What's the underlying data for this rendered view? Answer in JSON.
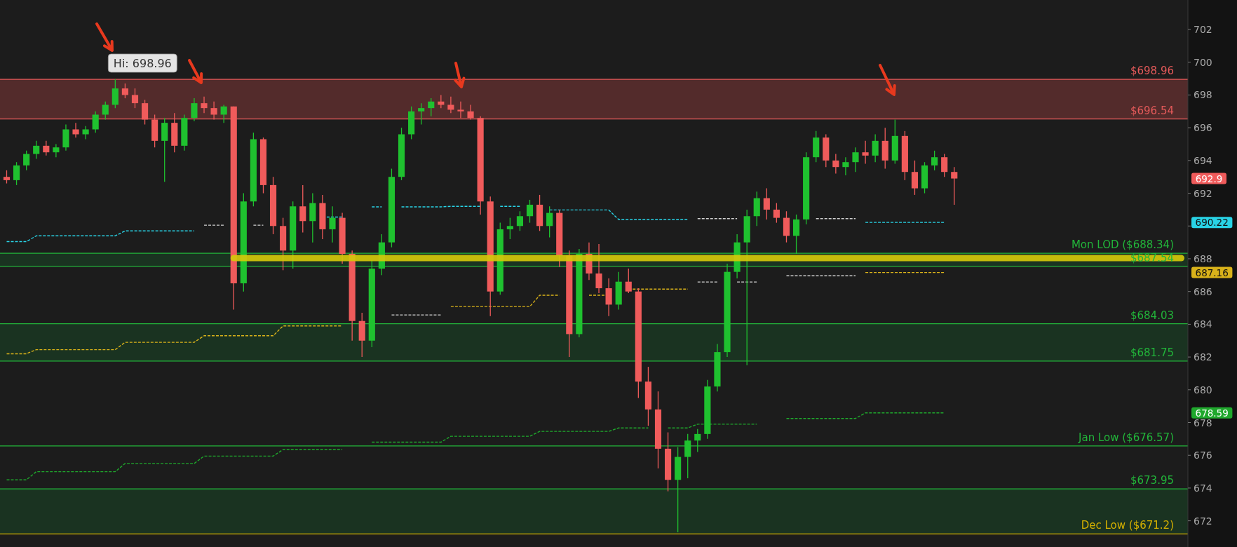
{
  "chart_data": {
    "type": "candlestick",
    "categories": [
      null,
      null,
      null,
      null,
      null,
      null,
      null,
      null,
      null,
      null,
      null,
      null,
      null,
      null,
      null,
      null,
      null,
      null,
      null,
      null,
      null,
      null,
      null,
      null,
      null,
      null,
      null,
      null,
      null,
      null,
      null,
      null,
      null,
      null,
      null,
      null,
      null,
      null,
      null,
      null,
      null,
      null,
      null,
      null,
      null,
      null,
      null,
      null,
      null,
      null,
      null,
      null,
      null,
      null,
      null,
      null,
      null,
      null,
      null,
      null,
      null,
      null,
      null,
      null,
      null,
      null,
      null,
      null,
      null,
      null,
      null,
      null,
      null,
      null,
      null,
      null,
      null,
      null,
      null,
      null,
      null,
      null,
      null,
      null,
      null,
      null,
      null,
      null,
      null,
      null,
      null,
      null,
      null,
      null,
      null,
      null,
      null,
      null,
      null,
      null,
      null,
      null,
      null,
      null,
      null,
      null,
      null,
      null,
      null,
      null,
      null,
      null,
      null,
      null,
      null,
      null,
      null,
      null,
      null,
      null
    ],
    "ohlc": [
      [
        693.0,
        693.4,
        692.6,
        692.8
      ],
      [
        692.8,
        693.9,
        692.5,
        693.7
      ],
      [
        693.7,
        694.6,
        693.4,
        694.4
      ],
      [
        694.4,
        695.2,
        694.1,
        694.9
      ],
      [
        694.9,
        695.2,
        694.3,
        694.5
      ],
      [
        694.5,
        695.0,
        694.2,
        694.8
      ],
      [
        694.8,
        696.2,
        694.6,
        695.9
      ],
      [
        695.9,
        696.3,
        695.4,
        695.6
      ],
      [
        695.6,
        696.1,
        695.3,
        695.9
      ],
      [
        695.9,
        697.0,
        695.7,
        696.8
      ],
      [
        696.8,
        697.6,
        696.5,
        697.4
      ],
      [
        697.4,
        698.96,
        697.2,
        698.4
      ],
      [
        698.4,
        698.7,
        697.8,
        698.0
      ],
      [
        698.0,
        698.4,
        697.2,
        697.5
      ],
      [
        697.5,
        697.7,
        696.2,
        696.5
      ],
      [
        696.5,
        696.8,
        694.8,
        695.2
      ],
      [
        695.2,
        696.6,
        692.7,
        696.3
      ],
      [
        696.3,
        696.9,
        694.5,
        694.9
      ],
      [
        694.9,
        696.8,
        694.6,
        696.6
      ],
      [
        696.6,
        697.8,
        696.4,
        697.5
      ],
      [
        697.5,
        697.9,
        696.9,
        697.2
      ],
      [
        697.2,
        697.6,
        696.5,
        696.8
      ],
      [
        696.8,
        697.4,
        696.3,
        697.3
      ],
      [
        697.3,
        697.3,
        684.9,
        686.5
      ],
      [
        686.5,
        692.0,
        686.0,
        691.5
      ],
      [
        691.5,
        695.7,
        691.2,
        695.3
      ],
      [
        695.3,
        695.4,
        692.0,
        692.5
      ],
      [
        692.5,
        693.0,
        689.5,
        690.0
      ],
      [
        690.0,
        690.5,
        687.3,
        688.5
      ],
      [
        688.5,
        691.5,
        687.4,
        691.2
      ],
      [
        691.2,
        692.5,
        689.6,
        690.3
      ],
      [
        690.3,
        692.0,
        689.0,
        691.4
      ],
      [
        691.4,
        691.9,
        689.2,
        689.8
      ],
      [
        689.8,
        691.2,
        689.0,
        690.5
      ],
      [
        690.5,
        690.8,
        687.7,
        688.3
      ],
      [
        688.3,
        688.5,
        683.0,
        684.2
      ],
      [
        684.2,
        684.7,
        682.0,
        683.0
      ],
      [
        683.0,
        687.9,
        682.6,
        687.4
      ],
      [
        687.4,
        689.5,
        687.0,
        689.0
      ],
      [
        689.0,
        693.5,
        688.7,
        693.0
      ],
      [
        693.0,
        696.0,
        692.8,
        695.6
      ],
      [
        695.6,
        697.3,
        695.3,
        697.0
      ],
      [
        697.0,
        697.5,
        696.2,
        697.2
      ],
      [
        697.2,
        697.8,
        696.7,
        697.6
      ],
      [
        697.6,
        698.0,
        697.2,
        697.4
      ],
      [
        697.4,
        697.9,
        696.9,
        697.1
      ],
      [
        697.1,
        697.6,
        696.6,
        697.0
      ],
      [
        697.0,
        697.4,
        696.5,
        696.6
      ],
      [
        696.6,
        696.7,
        690.7,
        691.5
      ],
      [
        691.5,
        691.8,
        684.5,
        686.0
      ],
      [
        686.0,
        690.2,
        685.8,
        689.8
      ],
      [
        689.8,
        690.5,
        689.2,
        690.0
      ],
      [
        690.0,
        690.9,
        689.7,
        690.6
      ],
      [
        690.6,
        691.6,
        690.2,
        691.3
      ],
      [
        691.3,
        691.9,
        689.7,
        690.0
      ],
      [
        690.0,
        691.2,
        689.3,
        690.8
      ],
      [
        690.8,
        691.0,
        687.5,
        688.2
      ],
      [
        688.2,
        688.5,
        682.0,
        683.4
      ],
      [
        683.4,
        688.6,
        683.2,
        688.3
      ],
      [
        688.3,
        689.0,
        686.7,
        687.1
      ],
      [
        687.1,
        688.9,
        685.9,
        686.2
      ],
      [
        686.2,
        686.8,
        684.5,
        685.2
      ],
      [
        685.2,
        687.2,
        684.9,
        686.6
      ],
      [
        686.6,
        687.4,
        685.9,
        686.0
      ],
      [
        686.0,
        686.2,
        679.5,
        680.5
      ],
      [
        680.5,
        681.4,
        677.8,
        678.8
      ],
      [
        678.8,
        679.9,
        675.2,
        676.4
      ],
      [
        676.4,
        677.4,
        673.8,
        674.5
      ],
      [
        674.5,
        676.5,
        671.3,
        675.9
      ],
      [
        675.9,
        677.3,
        674.6,
        676.9
      ],
      [
        676.9,
        677.6,
        676.2,
        677.3
      ],
      [
        677.3,
        680.6,
        677.0,
        680.2
      ],
      [
        680.2,
        682.8,
        679.9,
        682.3
      ],
      [
        682.3,
        687.7,
        682.0,
        687.2
      ],
      [
        687.2,
        689.5,
        686.8,
        689.0
      ],
      [
        689.0,
        691.0,
        681.5,
        690.6
      ],
      [
        690.6,
        692.1,
        690.0,
        691.7
      ],
      [
        691.7,
        692.3,
        690.4,
        691.0
      ],
      [
        691.0,
        691.4,
        690.2,
        690.5
      ],
      [
        690.5,
        690.9,
        689.0,
        689.4
      ],
      [
        689.4,
        690.7,
        688.3,
        690.4
      ],
      [
        690.4,
        694.5,
        690.1,
        694.2
      ],
      [
        694.2,
        695.8,
        693.9,
        695.4
      ],
      [
        695.4,
        695.6,
        693.6,
        694.0
      ],
      [
        694.0,
        694.4,
        693.2,
        693.6
      ],
      [
        693.6,
        694.2,
        693.1,
        693.9
      ],
      [
        693.9,
        694.8,
        693.3,
        694.5
      ],
      [
        694.5,
        695.2,
        693.8,
        694.3
      ],
      [
        694.3,
        695.6,
        693.9,
        695.2
      ],
      [
        695.2,
        696.0,
        693.5,
        694.0
      ],
      [
        694.0,
        696.5,
        693.8,
        695.5
      ],
      [
        695.5,
        695.8,
        692.8,
        693.3
      ],
      [
        693.3,
        694.0,
        691.9,
        692.3
      ],
      [
        692.3,
        693.9,
        692.0,
        693.7
      ],
      [
        693.7,
        694.6,
        693.4,
        694.2
      ],
      [
        694.2,
        694.4,
        693.0,
        693.3
      ],
      [
        693.3,
        693.6,
        691.3,
        692.9
      ],
      null,
      null,
      null,
      null,
      null,
      null,
      null,
      null,
      null,
      null,
      null,
      null,
      null,
      null,
      null,
      null,
      null,
      null,
      null,
      null,
      null,
      null,
      null
    ],
    "series": [
      {
        "type": "line",
        "color": "#29d3e6",
        "line_style": "dashed",
        "values": [
          689.05,
          689.05,
          689.05,
          689.4,
          689.4,
          689.4,
          689.4,
          689.4,
          689.4,
          689.4,
          689.4,
          689.4,
          689.7,
          689.7,
          689.7,
          689.7,
          689.7,
          689.7,
          689.7,
          689.7,
          null,
          null,
          null,
          null,
          null,
          null,
          null,
          null,
          null,
          null,
          null,
          null,
          690.55,
          690.55,
          690.55,
          null,
          null,
          691.17,
          691.17,
          null,
          691.17,
          691.17,
          691.17,
          691.17,
          691.17,
          691.2,
          691.2,
          691.2,
          691.2,
          null,
          691.2,
          691.2,
          691.2,
          null,
          null,
          690.98,
          690.98,
          690.98,
          690.98,
          690.98,
          690.98,
          690.98,
          690.4,
          690.4,
          690.4,
          690.4,
          690.4,
          690.4,
          690.4,
          690.4,
          null,
          null,
          null,
          null,
          null,
          null,
          null,
          null,
          null,
          null,
          null,
          null,
          null,
          null,
          null,
          null,
          null,
          690.22,
          690.22,
          690.22,
          690.22,
          690.22,
          690.22,
          690.22,
          690.22,
          690.22,
          null,
          null,
          null,
          null,
          null,
          null,
          null,
          null,
          null,
          null,
          null,
          null,
          null,
          null,
          null,
          null,
          null,
          null,
          null,
          null,
          null,
          null,
          null,
          null
        ]
      },
      {
        "type": "line",
        "color": "#d0d0d0",
        "line_style": "dashed",
        "values": [
          null,
          null,
          null,
          null,
          null,
          null,
          null,
          null,
          null,
          null,
          null,
          null,
          null,
          null,
          null,
          null,
          null,
          null,
          null,
          null,
          690.05,
          690.05,
          690.05,
          null,
          null,
          690.05,
          690.05,
          null,
          null,
          null,
          null,
          null,
          null,
          null,
          null,
          null,
          null,
          null,
          null,
          null,
          null,
          null,
          null,
          null,
          null,
          null,
          null,
          null,
          null,
          null,
          null,
          null,
          null,
          null,
          null,
          null,
          null,
          null,
          null,
          null,
          null,
          null,
          null,
          null,
          null,
          null,
          null,
          null,
          null,
          null,
          690.45,
          690.45,
          690.45,
          690.45,
          690.45,
          null,
          null,
          null,
          null,
          null,
          null,
          null,
          690.45,
          690.45,
          690.45,
          690.45,
          690.45,
          null,
          null,
          null,
          null,
          null,
          null,
          null,
          null,
          null,
          null,
          null,
          null,
          null,
          null,
          null,
          null,
          null,
          null,
          null,
          null,
          null,
          null,
          null,
          null,
          null,
          null,
          null,
          null,
          null,
          null,
          null,
          null,
          null
        ]
      },
      {
        "type": "line",
        "color": "#d9b21a",
        "line_style": "dashed",
        "values": [
          682.2,
          682.2,
          682.2,
          682.45,
          682.45,
          682.45,
          682.45,
          682.45,
          682.45,
          682.45,
          682.45,
          682.45,
          682.9,
          682.9,
          682.9,
          682.9,
          682.9,
          682.9,
          682.9,
          682.9,
          683.3,
          683.3,
          683.3,
          683.3,
          683.3,
          683.3,
          683.3,
          683.3,
          683.9,
          683.9,
          683.9,
          683.9,
          683.9,
          683.9,
          683.9,
          null,
          null,
          null,
          null,
          null,
          null,
          null,
          null,
          null,
          null,
          685.08,
          685.08,
          685.08,
          685.08,
          685.08,
          685.08,
          685.08,
          685.08,
          685.08,
          685.77,
          685.77,
          685.77,
          null,
          null,
          685.77,
          685.77,
          685.77,
          null,
          686.15,
          686.15,
          686.15,
          686.15,
          686.15,
          686.15,
          686.15,
          null,
          null,
          null,
          null,
          null,
          null,
          null,
          null,
          null,
          null,
          null,
          null,
          null,
          null,
          null,
          null,
          null,
          687.16,
          687.16,
          687.16,
          687.16,
          687.16,
          687.16,
          687.16,
          687.16,
          687.16,
          null,
          null,
          null,
          null,
          null,
          null,
          null,
          null,
          null,
          null,
          null,
          null,
          null,
          null,
          null,
          null,
          null,
          null,
          null,
          null,
          null,
          null,
          null,
          null
        ]
      },
      {
        "type": "line",
        "color": "#d0d0d0",
        "line_style": "dashed",
        "values": [
          null,
          null,
          null,
          null,
          null,
          null,
          null,
          null,
          null,
          null,
          null,
          null,
          null,
          null,
          null,
          null,
          null,
          null,
          null,
          null,
          null,
          null,
          null,
          null,
          null,
          null,
          null,
          null,
          null,
          null,
          null,
          null,
          null,
          null,
          null,
          null,
          null,
          null,
          null,
          684.57,
          684.57,
          684.57,
          684.57,
          684.57,
          684.57,
          null,
          null,
          null,
          null,
          null,
          null,
          null,
          null,
          null,
          null,
          null,
          null,
          null,
          null,
          null,
          null,
          null,
          null,
          null,
          null,
          null,
          null,
          null,
          null,
          null,
          686.58,
          686.58,
          686.58,
          null,
          686.58,
          686.58,
          686.58,
          null,
          null,
          686.96,
          686.96,
          686.96,
          686.96,
          686.96,
          686.96,
          686.96,
          686.96,
          null,
          null,
          null,
          null,
          null,
          null,
          null,
          null,
          null,
          null,
          null,
          null,
          null,
          null,
          null,
          null,
          null,
          null,
          null,
          null,
          null,
          null,
          null,
          null,
          null,
          null,
          null,
          null,
          null,
          null,
          null,
          null,
          null
        ]
      },
      {
        "type": "line",
        "color": "#1fa82c",
        "line_style": "dashed",
        "values": [
          674.5,
          674.5,
          674.5,
          675.0,
          675.0,
          675.0,
          675.0,
          675.0,
          675.0,
          675.0,
          675.0,
          675.0,
          675.5,
          675.5,
          675.5,
          675.5,
          675.5,
          675.5,
          675.5,
          675.5,
          675.95,
          675.95,
          675.95,
          675.95,
          675.95,
          675.95,
          675.95,
          675.95,
          676.35,
          676.35,
          676.35,
          676.35,
          676.35,
          676.35,
          676.35,
          null,
          null,
          676.8,
          676.8,
          676.8,
          676.8,
          676.8,
          676.8,
          676.8,
          676.8,
          677.16,
          677.16,
          677.16,
          677.16,
          677.16,
          677.16,
          677.16,
          677.16,
          677.16,
          677.46,
          677.46,
          677.46,
          677.46,
          677.46,
          677.46,
          677.46,
          677.46,
          677.67,
          677.67,
          677.67,
          677.67,
          null,
          677.67,
          677.67,
          677.67,
          677.9,
          677.9,
          677.9,
          677.9,
          677.9,
          677.9,
          677.9,
          null,
          null,
          678.25,
          678.25,
          678.25,
          678.25,
          678.25,
          678.25,
          678.25,
          678.25,
          678.59,
          678.59,
          678.59,
          678.59,
          678.59,
          678.59,
          678.59,
          678.59,
          678.59,
          null,
          null,
          null,
          null,
          null,
          null,
          null,
          null,
          null,
          null,
          null,
          null,
          null,
          null,
          null,
          null,
          null,
          null,
          null,
          null,
          null,
          null,
          null,
          null
        ]
      },
      {
        "type": "line",
        "color": "#d4c80a",
        "line_style": "solid",
        "values": [
          null,
          null,
          null,
          null,
          null,
          null,
          null,
          null,
          null,
          null,
          null,
          null,
          null,
          null,
          null,
          null,
          null,
          null,
          null,
          null,
          null,
          null,
          null,
          688.04,
          688.04,
          688.04,
          688.04,
          688.04,
          688.04,
          688.04,
          688.04,
          688.04,
          688.04,
          688.04,
          688.04,
          688.04,
          688.04,
          688.04,
          688.04,
          688.04,
          688.04,
          688.04,
          688.04,
          688.04,
          688.04,
          688.04,
          688.04,
          688.04,
          688.04,
          688.04,
          688.04,
          688.04,
          688.04,
          688.04,
          688.04,
          688.04,
          688.04,
          688.04,
          688.04,
          688.04,
          688.04,
          688.04,
          688.04,
          688.04,
          688.04,
          688.04,
          688.04,
          688.04,
          688.04,
          688.04,
          688.04,
          688.04,
          688.04,
          688.04,
          688.04,
          688.04,
          688.04,
          688.04,
          688.04,
          688.04,
          688.04,
          688.04,
          688.04,
          688.04,
          688.04,
          688.04,
          688.04,
          688.04,
          688.04,
          688.04,
          688.04,
          688.04,
          688.04,
          688.04,
          688.04,
          688.04,
          688.04,
          688.04,
          688.04,
          688.04,
          688.04,
          688.04,
          688.04,
          688.04,
          688.04,
          688.04,
          688.04,
          688.04,
          688.04,
          688.04,
          688.04,
          688.04,
          688.04,
          688.04,
          688.04,
          688.04,
          688.04,
          688.04,
          688.04,
          688.04
        ]
      }
    ],
    "bands": [
      {
        "axis": "y",
        "from": 696.54,
        "to": 698.96,
        "color": "#532b2b"
      },
      {
        "axis": "y",
        "from": 687.54,
        "to": 688.34,
        "color": "#1a3321"
      },
      {
        "axis": "y",
        "from": 681.75,
        "to": 684.03,
        "color": "#1a3321"
      },
      {
        "axis": "y",
        "from": 671.2,
        "to": 673.95,
        "color": "#1a3321"
      }
    ],
    "ref_lines": [
      {
        "axis": "y",
        "value": 698.96,
        "label": "$698.96",
        "color": "#e45a5a"
      },
      {
        "axis": "y",
        "value": 696.54,
        "label": "$696.54",
        "color": "#e45a5a"
      },
      {
        "axis": "y",
        "value": 688.34,
        "label": "Mon LOD ($688.34)",
        "color": "#22b53a"
      },
      {
        "axis": "y",
        "value": 687.54,
        "label": "$687.54",
        "color": "#22b53a"
      },
      {
        "axis": "y",
        "value": 684.03,
        "label": "$684.03",
        "color": "#22b53a"
      },
      {
        "axis": "y",
        "value": 681.75,
        "label": "$681.75",
        "color": "#22b53a"
      },
      {
        "axis": "y",
        "value": 676.57,
        "label": "Jan Low ($676.57)",
        "color": "#22b53a"
      },
      {
        "axis": "y",
        "value": 673.95,
        "label": "$673.95",
        "color": "#22b53a"
      },
      {
        "axis": "y",
        "value": 671.2,
        "label": "Dec Low ($671.2)",
        "color": "#d4b000"
      }
    ],
    "annotations": [
      {
        "text": "Hi: 698.96",
        "y": 698.96
      },
      "692.9",
      "690.22",
      "687.16",
      "678.59"
    ],
    "ylim": [
      670.4,
      703.8
    ],
    "yticks": [
      672,
      674,
      676,
      678,
      680,
      682,
      684,
      686,
      688,
      {
        "value": 690,
        "label": null
      },
      692,
      694,
      696,
      698,
      700,
      702
    ],
    "tick_labels": "y"
  }
}
